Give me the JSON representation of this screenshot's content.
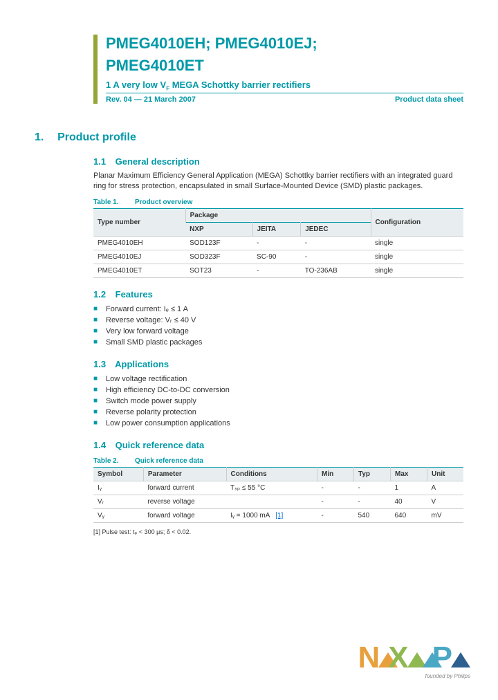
{
  "header": {
    "title_line1": "PMEG4010EH; PMEG4010EJ;",
    "title_line2": "PMEG4010ET",
    "subtitle_pre": "1 A very low V",
    "subtitle_sub": "F",
    "subtitle_post": " MEGA Schottky barrier rectifiers",
    "rev": "Rev. 04 — 21 March 2007",
    "doc_type": "Product data sheet"
  },
  "section1": {
    "num": "1.",
    "title": "Product profile"
  },
  "s11": {
    "num": "1.1",
    "title": "General description",
    "text": "Planar Maximum Efficiency General Application (MEGA) Schottky barrier rectifiers with an integrated guard ring for stress protection, encapsulated in small Surface-Mounted Device (SMD) plastic packages."
  },
  "table1": {
    "label": "Table 1.",
    "caption": "Product overview",
    "h_type": "Type number",
    "h_package": "Package",
    "h_nxp": "NXP",
    "h_jeita": "JEITA",
    "h_jedec": "JEDEC",
    "h_config": "Configuration",
    "rows": [
      {
        "type": "PMEG4010EH",
        "nxp": "SOD123F",
        "jeita": "-",
        "jedec": "-",
        "config": "single"
      },
      {
        "type": "PMEG4010EJ",
        "nxp": "SOD323F",
        "jeita": "SC-90",
        "jedec": "-",
        "config": "single"
      },
      {
        "type": "PMEG4010ET",
        "nxp": "SOT23",
        "jeita": "-",
        "jedec": "TO-236AB",
        "config": "single"
      }
    ]
  },
  "s12": {
    "num": "1.2",
    "title": "Features",
    "items": [
      "Forward current: Iₑ ≤ 1 A",
      "Reverse voltage: Vᵣ ≤ 40 V",
      "Very low forward voltage",
      "Small SMD plastic packages"
    ]
  },
  "s13": {
    "num": "1.3",
    "title": "Applications",
    "items": [
      "Low voltage rectification",
      "High efficiency DC-to-DC conversion",
      "Switch mode power supply",
      "Reverse polarity protection",
      "Low power consumption applications"
    ]
  },
  "s14": {
    "num": "1.4",
    "title": "Quick reference data"
  },
  "table2": {
    "label": "Table 2.",
    "caption": "Quick reference data",
    "h_symbol": "Symbol",
    "h_param": "Parameter",
    "h_cond": "Conditions",
    "h_min": "Min",
    "h_typ": "Typ",
    "h_max": "Max",
    "h_unit": "Unit",
    "rows": [
      {
        "sym": "Iᵧ",
        "param": "forward current",
        "cond": "Tₛₚ ≤ 55 °C",
        "ref": "",
        "min": "-",
        "typ": "-",
        "max": "1",
        "unit": "A"
      },
      {
        "sym": "Vᵣ",
        "param": "reverse voltage",
        "cond": "",
        "ref": "",
        "min": "-",
        "typ": "-",
        "max": "40",
        "unit": "V"
      },
      {
        "sym": "Vᵧ",
        "param": "forward voltage",
        "cond": "Iᵧ = 1000 mA",
        "ref": "[1]",
        "min": "-",
        "typ": "540",
        "max": "640",
        "unit": "mV"
      }
    ]
  },
  "footnote": "[1]   Pulse test: tₚ < 300 μs; δ < 0.02.",
  "logo": {
    "tagline": "founded by Philips"
  }
}
